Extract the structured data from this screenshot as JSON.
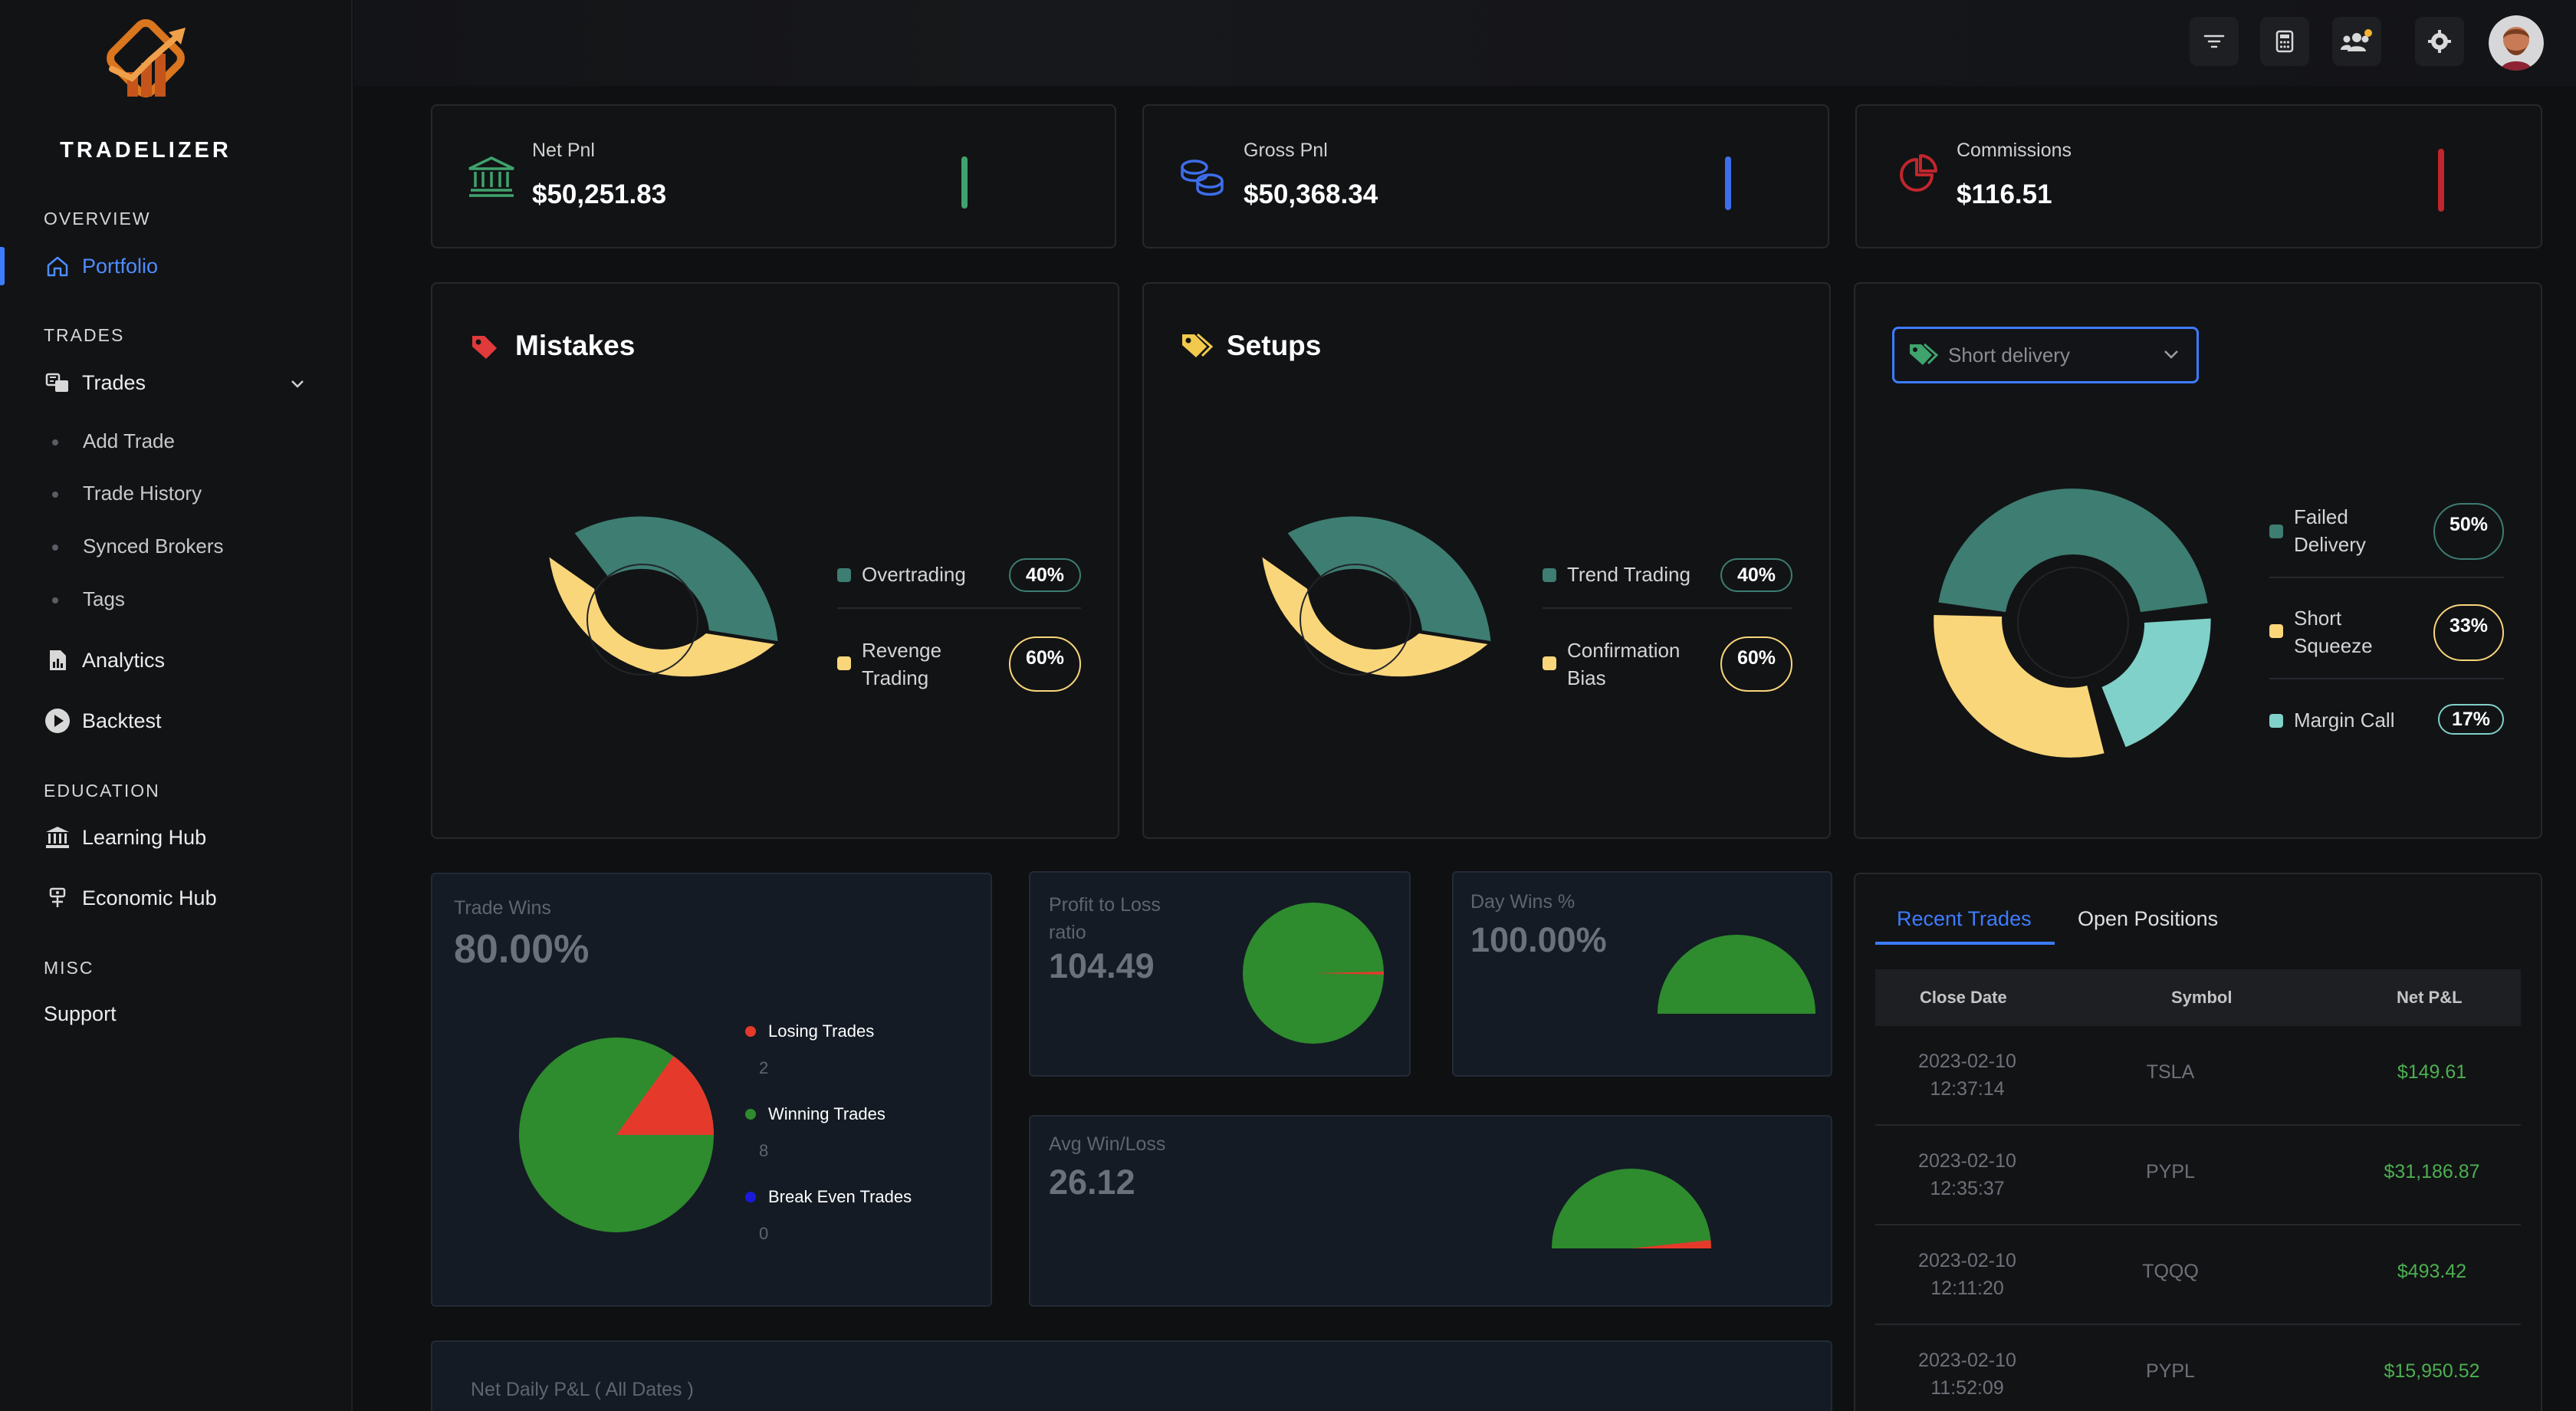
{
  "app": {
    "brand": "TRADELIZER"
  },
  "sidebar": {
    "sections": {
      "overview": "OVERVIEW",
      "trades": "TRADES",
      "education": "EDUCATION",
      "misc": "MISC"
    },
    "items": {
      "portfolio": "Portfolio",
      "trades": "Trades",
      "add_trade": "Add Trade",
      "trade_history": "Trade History",
      "synced_brokers": "Synced Brokers",
      "tags": "Tags",
      "analytics": "Analytics",
      "backtest": "Backtest",
      "learning_hub": "Learning Hub",
      "economic_hub": "Economic Hub",
      "support": "Support"
    }
  },
  "topbar": {
    "icons": [
      "filter-icon",
      "calculator-icon",
      "users-icon",
      "settings-icon"
    ]
  },
  "stats": {
    "net_pnl": {
      "label": "Net Pnl",
      "value": "$50,251.83",
      "color": "#3fa36c"
    },
    "gross_pnl": {
      "label": "Gross Pnl",
      "value": "$50,368.34",
      "color": "#3d6eea"
    },
    "commissions": {
      "label": "Commissions",
      "value": "$116.51",
      "color": "#c0262d"
    }
  },
  "mistakes": {
    "title": "Mistakes",
    "items": [
      {
        "label": "Overtrading",
        "pct": "40%",
        "color": "#3d7d72"
      },
      {
        "label": "Revenge Trading",
        "line1": "Revenge",
        "line2": "Trading",
        "pct": "60%",
        "color": "#f9d67a"
      }
    ]
  },
  "setups": {
    "title": "Setups",
    "items": [
      {
        "label": "Trend Trading",
        "pct": "40%",
        "color": "#3d7d72"
      },
      {
        "label": "Confirmation Bias",
        "line1": "Confirmation",
        "line2": "Bias",
        "pct": "60%",
        "color": "#f9d67a"
      }
    ]
  },
  "delivery": {
    "dropdown_value": "Short delivery",
    "items": [
      {
        "label": "Failed Delivery",
        "line1": "Failed",
        "line2": "Delivery",
        "pct": "50%",
        "color": "#3d7d72"
      },
      {
        "label": "Short Squeeze",
        "line1": "Short",
        "line2": "Squeeze",
        "pct": "33%",
        "color": "#f9d67a"
      },
      {
        "label": "Margin Call",
        "pct": "17%",
        "color": "#7fd1c9"
      }
    ]
  },
  "trade_wins": {
    "label": "Trade Wins",
    "value": "80.00%",
    "legend": [
      {
        "label": "Losing Trades",
        "count": "2",
        "color": "#e53a2b"
      },
      {
        "label": "Winning Trades",
        "count": "8",
        "color": "#2e8b2e"
      },
      {
        "label": "Break Even Trades",
        "count": "0",
        "color": "#1a1adb"
      }
    ]
  },
  "profit_loss": {
    "label_line1": "Profit to Loss",
    "label_line2": "ratio",
    "value": "104.49"
  },
  "day_wins": {
    "label": "Day Wins %",
    "value": "100.00%"
  },
  "avg_win_loss": {
    "label": "Avg Win/Loss",
    "value": "26.12"
  },
  "net_daily": {
    "label": "Net Daily P&L ( All Dates )"
  },
  "trades_table": {
    "tabs": [
      "Recent Trades",
      "Open Positions"
    ],
    "headers": {
      "date": "Close Date",
      "symbol": "Symbol",
      "pnl": "Net P&L"
    },
    "rows": [
      {
        "date1": "2023-02-10",
        "date2": "12:37:14",
        "symbol": "TSLA",
        "pnl": "$149.61"
      },
      {
        "date1": "2023-02-10",
        "date2": "12:35:37",
        "symbol": "PYPL",
        "pnl": "$31,186.87"
      },
      {
        "date1": "2023-02-10",
        "date2": "12:11:20",
        "symbol": "TQQQ",
        "pnl": "$493.42"
      },
      {
        "date1": "2023-02-10",
        "date2": "11:52:09",
        "symbol": "PYPL",
        "pnl": "$15,950.52"
      }
    ]
  }
}
